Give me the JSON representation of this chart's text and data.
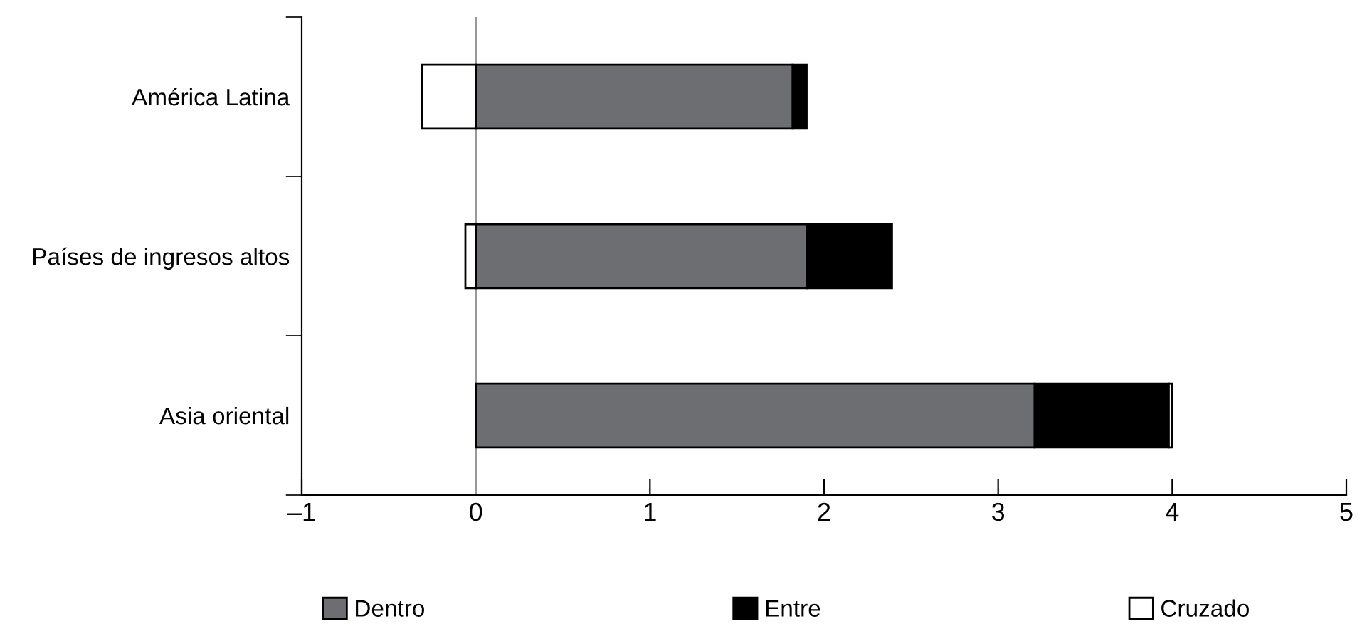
{
  "chart_data": {
    "type": "bar",
    "orientation": "horizontal",
    "stacked": true,
    "categories": [
      "América Latina",
      "Países de ingresos altos",
      "Asia oriental"
    ],
    "series": [
      {
        "name": "Dentro",
        "color": "#6d6e71",
        "values": [
          1.82,
          1.9,
          3.21
        ]
      },
      {
        "name": "Entre",
        "color": "#000000",
        "values": [
          0.08,
          0.49,
          0.77
        ]
      },
      {
        "name": "Cruzado",
        "color": "#ffffff",
        "values": [
          -0.31,
          -0.06,
          0.02
        ]
      }
    ],
    "xlim": [
      -1,
      5
    ],
    "xticks": [
      {
        "value": -1,
        "label": "–1"
      },
      0,
      1,
      2,
      3,
      4,
      5
    ],
    "ref_lines": [
      {
        "axis": "x",
        "value": 0,
        "color": "#999999"
      }
    ],
    "grid": false,
    "legend": "bottom"
  }
}
